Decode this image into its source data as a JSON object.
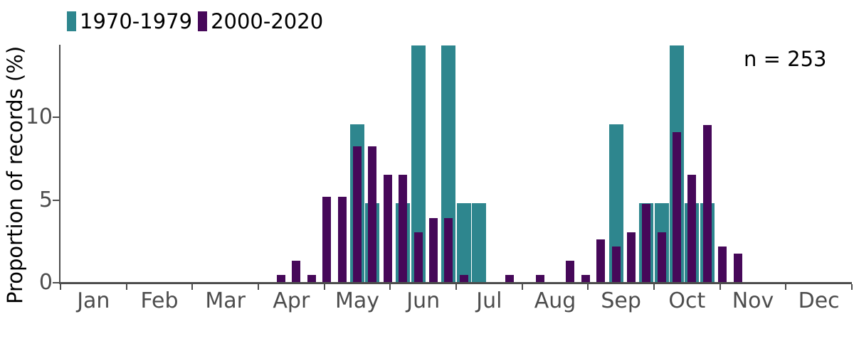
{
  "chart_data": {
    "type": "bar",
    "title": "",
    "ylabel": "Proportion of records (%)",
    "annotation": "n = 253",
    "legend_position": "top-left",
    "grid": false,
    "x_axis": {
      "unit": "week of year",
      "bins_per_year": 52,
      "month_labels": [
        "Jan",
        "Feb",
        "Mar",
        "Apr",
        "May",
        "Jun",
        "Jul",
        "Aug",
        "Sep",
        "Oct",
        "Nov",
        "Dec"
      ]
    },
    "y_axis": {
      "ticks": [
        0,
        5,
        10
      ],
      "range": [
        0,
        14.4
      ]
    },
    "series": [
      {
        "name": "1970-1979",
        "color": "#2e868e",
        "points": [
          {
            "week": 20,
            "value": 9.52
          },
          {
            "week": 21,
            "value": 4.76
          },
          {
            "week": 23,
            "value": 4.76
          },
          {
            "week": 24,
            "value": 14.29
          },
          {
            "week": 26,
            "value": 14.29
          },
          {
            "week": 27,
            "value": 4.76
          },
          {
            "week": 28,
            "value": 4.76
          },
          {
            "week": 37,
            "value": 9.52
          },
          {
            "week": 39,
            "value": 4.76
          },
          {
            "week": 40,
            "value": 4.76
          },
          {
            "week": 41,
            "value": 14.29
          },
          {
            "week": 42,
            "value": 4.76
          },
          {
            "week": 43,
            "value": 4.76
          }
        ]
      },
      {
        "name": "2000-2020",
        "color": "#460859",
        "points": [
          {
            "week": 15,
            "value": 0.43
          },
          {
            "week": 16,
            "value": 1.29
          },
          {
            "week": 17,
            "value": 0.43
          },
          {
            "week": 18,
            "value": 5.17
          },
          {
            "week": 19,
            "value": 5.17
          },
          {
            "week": 20,
            "value": 8.19
          },
          {
            "week": 21,
            "value": 8.19
          },
          {
            "week": 22,
            "value": 6.47
          },
          {
            "week": 23,
            "value": 6.47
          },
          {
            "week": 24,
            "value": 3.02
          },
          {
            "week": 25,
            "value": 3.88
          },
          {
            "week": 26,
            "value": 3.88
          },
          {
            "week": 27,
            "value": 0.43
          },
          {
            "week": 30,
            "value": 0.43
          },
          {
            "week": 32,
            "value": 0.43
          },
          {
            "week": 34,
            "value": 1.29
          },
          {
            "week": 35,
            "value": 0.43
          },
          {
            "week": 36,
            "value": 2.59
          },
          {
            "week": 37,
            "value": 2.16
          },
          {
            "week": 38,
            "value": 3.02
          },
          {
            "week": 39,
            "value": 4.74
          },
          {
            "week": 40,
            "value": 3.02
          },
          {
            "week": 41,
            "value": 9.05
          },
          {
            "week": 42,
            "value": 6.47
          },
          {
            "week": 43,
            "value": 9.48
          },
          {
            "week": 44,
            "value": 2.16
          },
          {
            "week": 45,
            "value": 1.72
          }
        ]
      }
    ]
  },
  "colors": {
    "axis_text": "#4d4d4d",
    "axis_line": "#4d4d4d",
    "text": "#000000",
    "series_teal": "#2e868e",
    "series_purple": "#460859"
  }
}
